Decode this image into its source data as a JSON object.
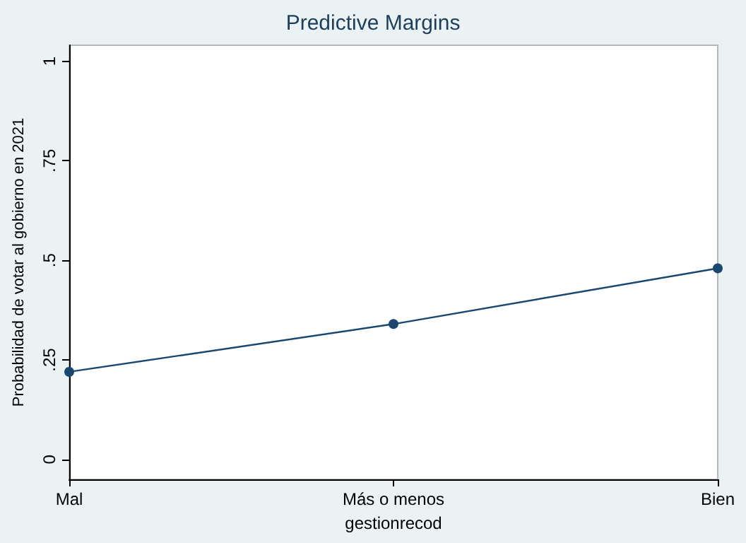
{
  "chart_data": {
    "type": "line",
    "title": "Predictive Margins",
    "xlabel": "gestionrecod",
    "ylabel": "Probabilidad de votar al gobierno en 2021",
    "categories": [
      "Mal",
      "Más o menos",
      "Bien"
    ],
    "series": [
      {
        "color": "#1a476f",
        "values": [
          0.22,
          0.34,
          0.48
        ]
      }
    ],
    "ylim": [
      -0.05,
      1.04
    ],
    "yticks": [
      {
        "value": 0,
        "label": "0"
      },
      {
        "value": 0.25,
        "label": ".25"
      },
      {
        "value": 0.5,
        "label": ".5"
      },
      {
        "value": 0.75,
        "label": ".75"
      },
      {
        "value": 1,
        "label": "1"
      }
    ],
    "grid": false,
    "marker": "circle",
    "line_style": "solid"
  }
}
